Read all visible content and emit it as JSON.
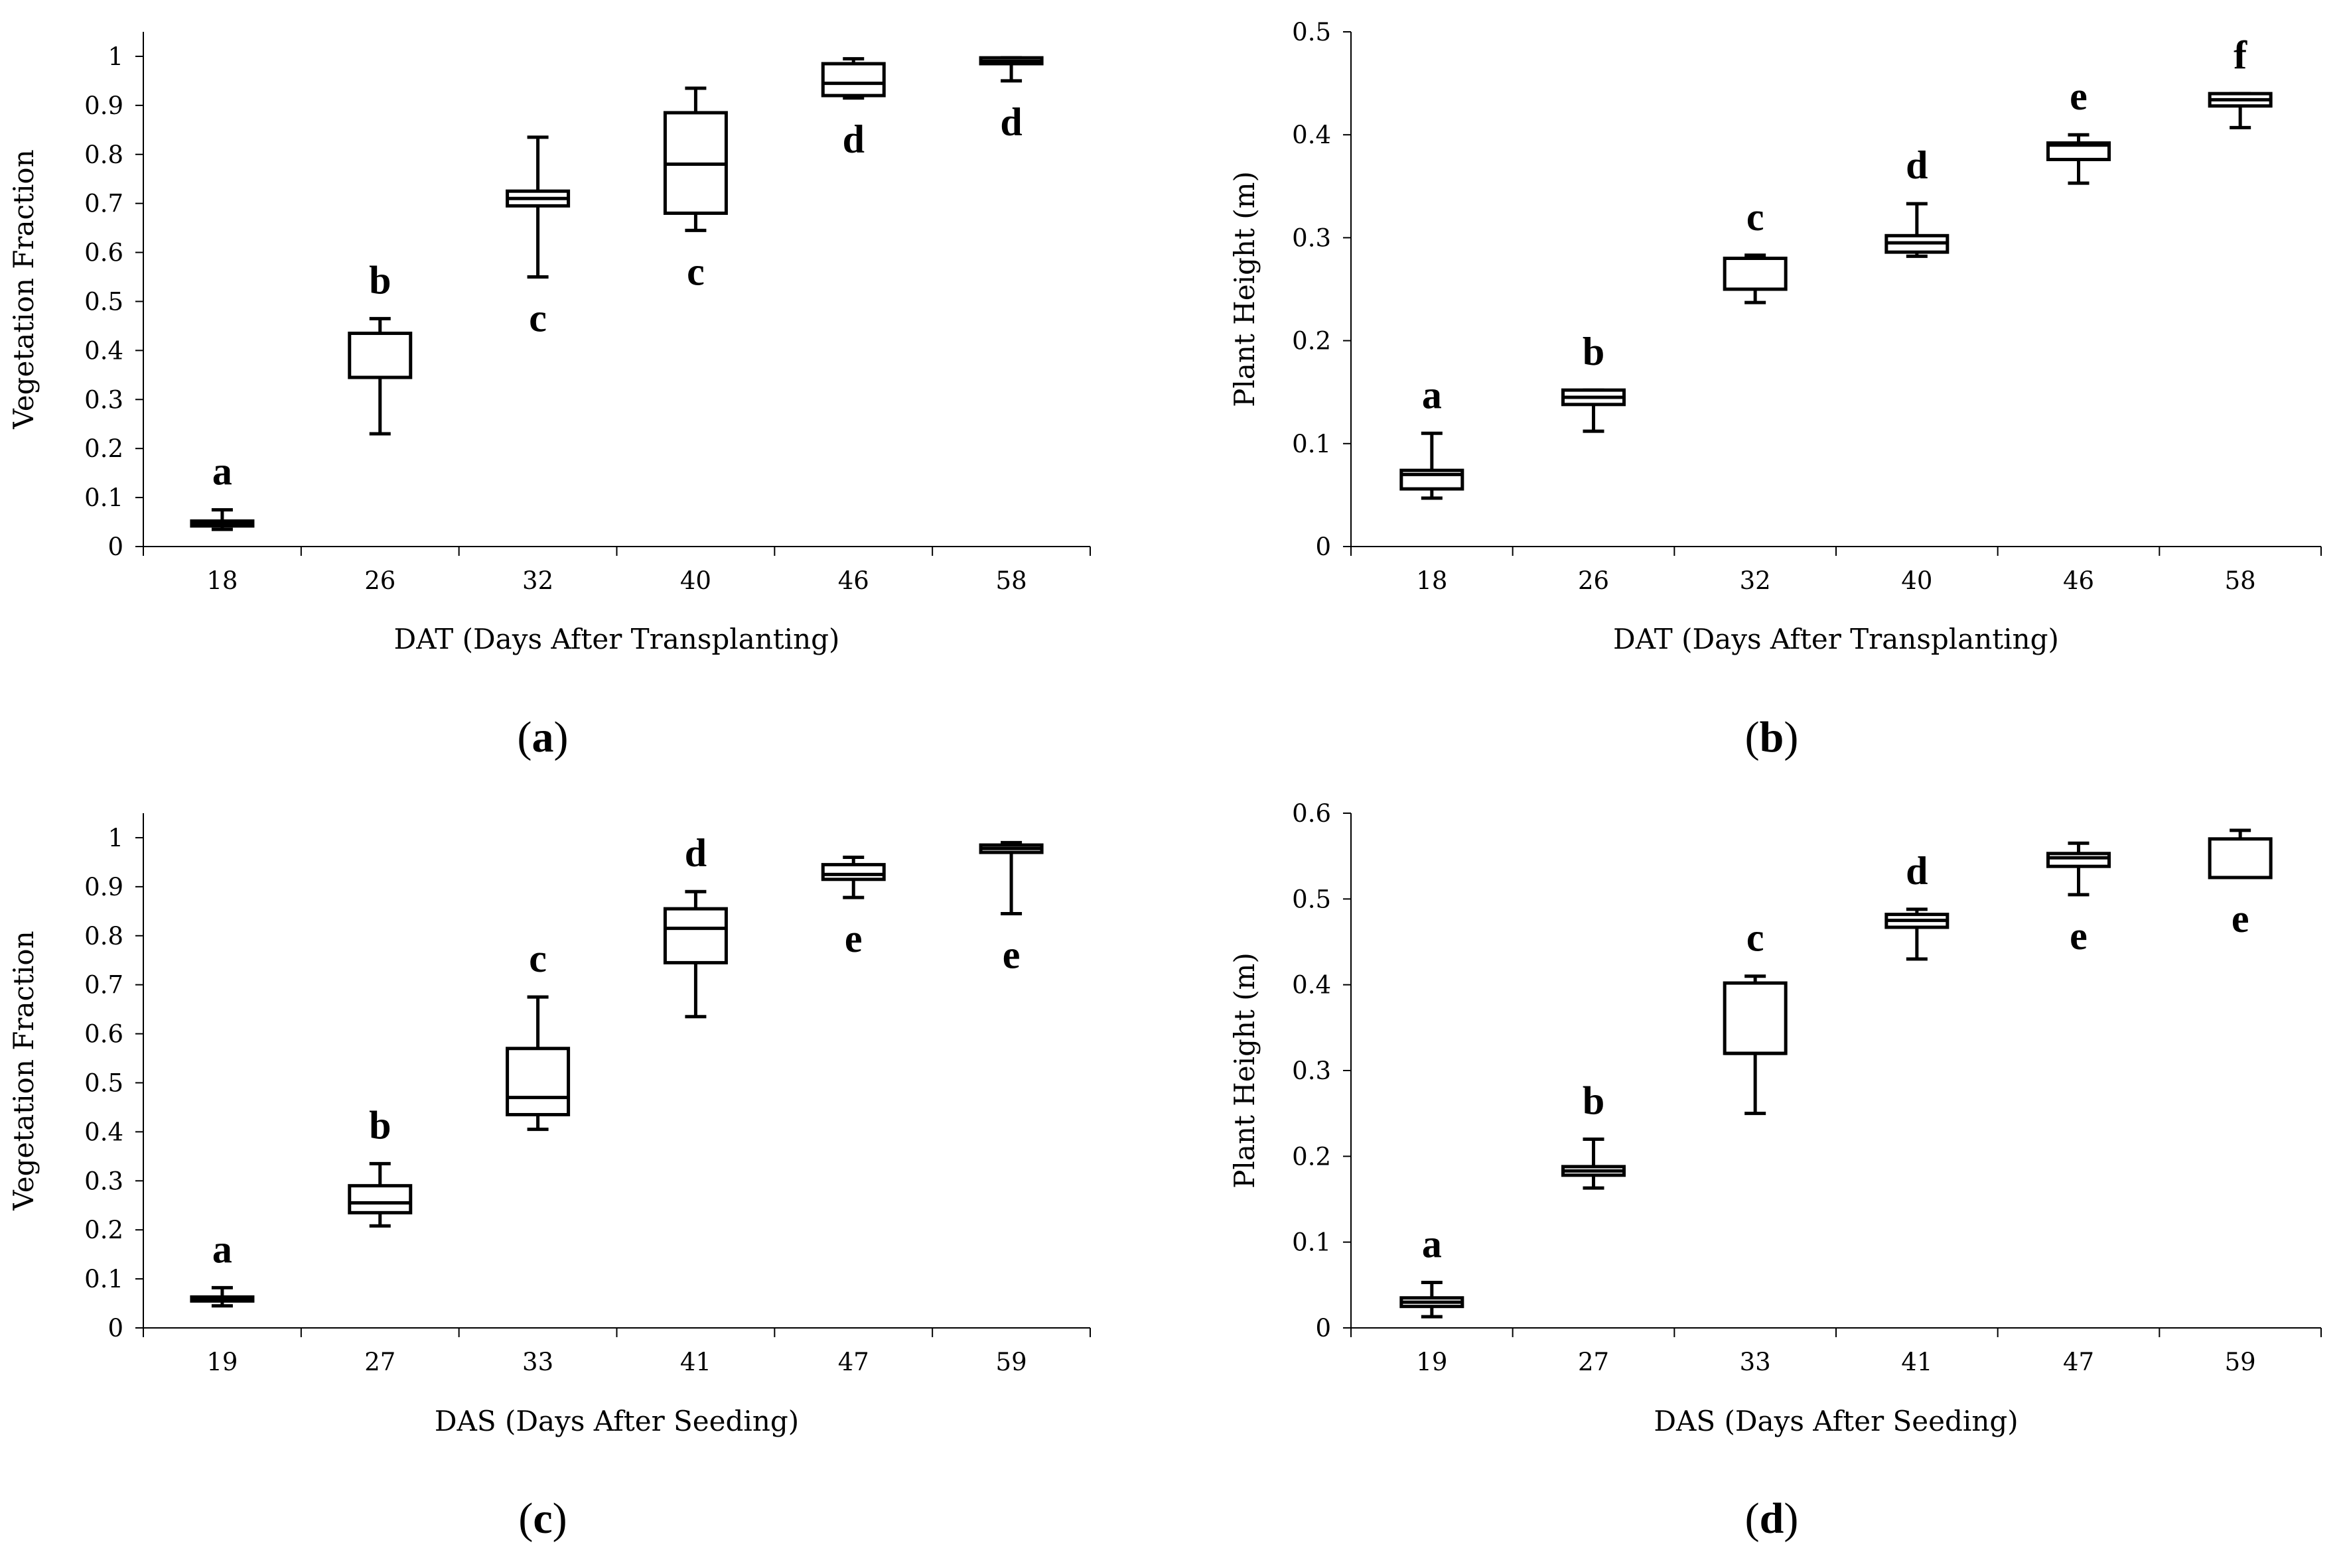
{
  "chart_data": [
    {
      "id": "a",
      "type": "box",
      "caption": "a",
      "xlabel": "DAT (Days After Transplanting)",
      "ylabel": "Vegetation Fraction",
      "ylim": [
        0,
        1.05
      ],
      "yticks": [
        0,
        0.1,
        0.2,
        0.3,
        0.4,
        0.5,
        0.6,
        0.7,
        0.8,
        0.9,
        1
      ],
      "ytick_labels": [
        "0",
        "0.1",
        "0.2",
        "0.3",
        "0.4",
        "0.5",
        "0.6",
        "0.7",
        "0.8",
        "0.9",
        "1"
      ],
      "categories": [
        "18",
        "26",
        "32",
        "40",
        "46",
        "58"
      ],
      "boxes": [
        {
          "min": 0.035,
          "q1": 0.042,
          "median": 0.047,
          "q3": 0.052,
          "max": 0.075,
          "letter": "a",
          "letter_pos": "above"
        },
        {
          "min": 0.23,
          "q1": 0.345,
          "median": 0.345,
          "q3": 0.435,
          "max": 0.465,
          "letter": "b",
          "letter_pos": "above"
        },
        {
          "min": 0.55,
          "q1": 0.695,
          "median": 0.71,
          "q3": 0.725,
          "max": 0.835,
          "letter": "c",
          "letter_pos": "below"
        },
        {
          "min": 0.645,
          "q1": 0.68,
          "median": 0.78,
          "q3": 0.885,
          "max": 0.935,
          "letter": "c",
          "letter_pos": "below"
        },
        {
          "min": 0.915,
          "q1": 0.92,
          "median": 0.945,
          "q3": 0.985,
          "max": 0.995,
          "letter": "d",
          "letter_pos": "below"
        },
        {
          "min": 0.95,
          "q1": 0.985,
          "median": 0.99,
          "q3": 0.997,
          "max": 0.997,
          "letter": "d",
          "letter_pos": "below"
        }
      ]
    },
    {
      "id": "b",
      "type": "box",
      "caption": "b",
      "xlabel": "DAT (Days After Transplanting)",
      "ylabel": "Plant Height (m)",
      "ylim": [
        0,
        0.5
      ],
      "yticks": [
        0,
        0.1,
        0.2,
        0.3,
        0.4,
        0.5
      ],
      "ytick_labels": [
        "0",
        "0.1",
        "0.2",
        "0.3",
        "0.4",
        "0.5"
      ],
      "categories": [
        "18",
        "26",
        "32",
        "40",
        "46",
        "58"
      ],
      "boxes": [
        {
          "min": 0.047,
          "q1": 0.056,
          "median": 0.07,
          "q3": 0.074,
          "max": 0.11,
          "letter": "a",
          "letter_pos": "above"
        },
        {
          "min": 0.112,
          "q1": 0.138,
          "median": 0.145,
          "q3": 0.152,
          "max": 0.152,
          "letter": "b",
          "letter_pos": "above"
        },
        {
          "min": 0.237,
          "q1": 0.25,
          "median": 0.28,
          "q3": 0.28,
          "max": 0.283,
          "letter": "c",
          "letter_pos": "above"
        },
        {
          "min": 0.282,
          "q1": 0.286,
          "median": 0.295,
          "q3": 0.302,
          "max": 0.333,
          "letter": "d",
          "letter_pos": "above"
        },
        {
          "min": 0.353,
          "q1": 0.376,
          "median": 0.39,
          "q3": 0.392,
          "max": 0.4,
          "letter": "e",
          "letter_pos": "above"
        },
        {
          "min": 0.407,
          "q1": 0.428,
          "median": 0.434,
          "q3": 0.44,
          "max": 0.44,
          "letter": "f",
          "letter_pos": "above"
        }
      ]
    },
    {
      "id": "c",
      "type": "box",
      "caption": "c",
      "xlabel": "DAS (Days After Seeding)",
      "ylabel": "Vegetation Fraction",
      "ylim": [
        0,
        1.05
      ],
      "yticks": [
        0,
        0.1,
        0.2,
        0.3,
        0.4,
        0.5,
        0.6,
        0.7,
        0.8,
        0.9,
        1
      ],
      "ytick_labels": [
        "0",
        "0.1",
        "0.2",
        "0.3",
        "0.4",
        "0.5",
        "0.6",
        "0.7",
        "0.8",
        "0.9",
        "1"
      ],
      "categories": [
        "19",
        "27",
        "33",
        "41",
        "47",
        "59"
      ],
      "boxes": [
        {
          "min": 0.045,
          "q1": 0.055,
          "median": 0.06,
          "q3": 0.063,
          "max": 0.082,
          "letter": "a",
          "letter_pos": "above"
        },
        {
          "min": 0.208,
          "q1": 0.235,
          "median": 0.255,
          "q3": 0.29,
          "max": 0.335,
          "letter": "b",
          "letter_pos": "above"
        },
        {
          "min": 0.405,
          "q1": 0.435,
          "median": 0.47,
          "q3": 0.57,
          "max": 0.675,
          "letter": "c",
          "letter_pos": "above"
        },
        {
          "min": 0.635,
          "q1": 0.745,
          "median": 0.815,
          "q3": 0.855,
          "max": 0.89,
          "letter": "d",
          "letter_pos": "above"
        },
        {
          "min": 0.878,
          "q1": 0.915,
          "median": 0.925,
          "q3": 0.945,
          "max": 0.96,
          "letter": "e",
          "letter_pos": "below"
        },
        {
          "min": 0.845,
          "q1": 0.97,
          "median": 0.978,
          "q3": 0.985,
          "max": 0.99,
          "letter": "e",
          "letter_pos": "below"
        }
      ]
    },
    {
      "id": "d",
      "type": "box",
      "caption": "d",
      "xlabel": "DAS (Days After Seeding)",
      "ylabel": "Plant Height (m)",
      "ylim": [
        0,
        0.6
      ],
      "yticks": [
        0,
        0.1,
        0.2,
        0.3,
        0.4,
        0.5,
        0.6
      ],
      "ytick_labels": [
        "0",
        "0.1",
        "0.2",
        "0.3",
        "0.4",
        "0.5",
        "0.6"
      ],
      "categories": [
        "19",
        "27",
        "33",
        "41",
        "47",
        "59"
      ],
      "boxes": [
        {
          "min": 0.013,
          "q1": 0.025,
          "median": 0.03,
          "q3": 0.035,
          "max": 0.053,
          "letter": "a",
          "letter_pos": "above"
        },
        {
          "min": 0.163,
          "q1": 0.178,
          "median": 0.183,
          "q3": 0.188,
          "max": 0.22,
          "letter": "b",
          "letter_pos": "above"
        },
        {
          "min": 0.25,
          "q1": 0.32,
          "median": 0.32,
          "q3": 0.402,
          "max": 0.41,
          "letter": "c",
          "letter_pos": "above"
        },
        {
          "min": 0.43,
          "q1": 0.467,
          "median": 0.475,
          "q3": 0.482,
          "max": 0.488,
          "letter": "d",
          "letter_pos": "above"
        },
        {
          "min": 0.505,
          "q1": 0.538,
          "median": 0.548,
          "q3": 0.553,
          "max": 0.565,
          "letter": "e",
          "letter_pos": "below"
        },
        {
          "min": 0.525,
          "q1": 0.525,
          "median": 0.525,
          "q3": 0.57,
          "max": 0.58,
          "letter": "e",
          "letter_pos": "below"
        }
      ]
    }
  ],
  "captions": {
    "a": {
      "open": "(",
      "letter": "a",
      "close": ")"
    },
    "b": {
      "open": "(",
      "letter": "b",
      "close": ")"
    },
    "c": {
      "open": "(",
      "letter": "c",
      "close": ")"
    },
    "d": {
      "open": "(",
      "letter": "d",
      "close": ")"
    }
  }
}
